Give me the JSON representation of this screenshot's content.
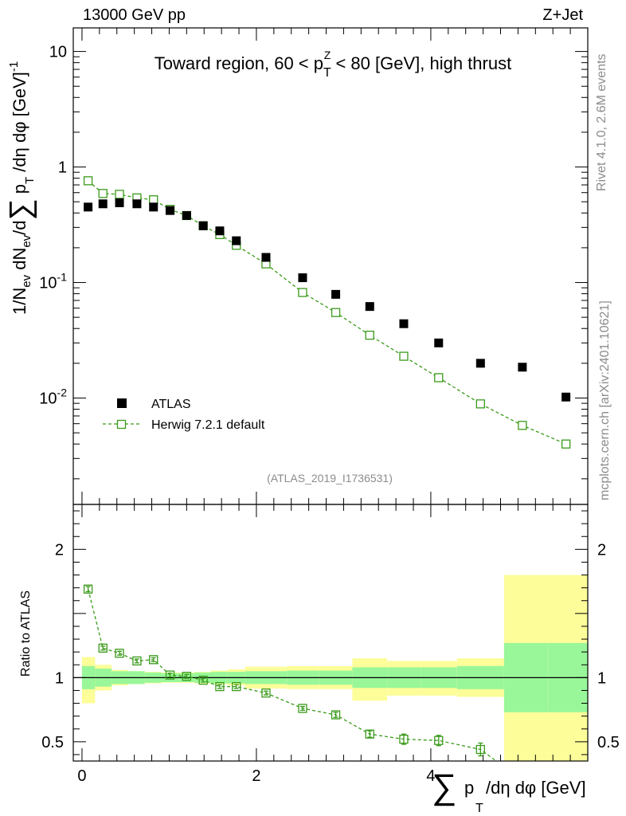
{
  "header": {
    "left": "13000 GeV pp",
    "right": "Z+Jet"
  },
  "side": {
    "rivet": "Rivet 4.1.0,  2.6M events",
    "mcplots": "mcplots.cern.ch [arXiv:2401.10621]"
  },
  "watermark": "(ATLAS_2019_I1736531)",
  "colors": {
    "mc": "#3a9a1a",
    "band_inner": "#99f799",
    "band_outer": "#fdfd99",
    "data": "#000000"
  },
  "chart_data": [
    {
      "type": "scatter",
      "title": "Toward region, 60 < p_T^Z < 80 [GeV], high thrust",
      "ylabel": "1/N_ev dN_ev/d∑p_T/dη dφ [GeV]^-1",
      "yscale": "log",
      "xlim": [
        -0.1,
        5.8
      ],
      "ylim": [
        0.0012,
        16
      ],
      "yticks": [
        {
          "value": 10,
          "label": "10"
        },
        {
          "value": 1,
          "label": "1"
        },
        {
          "value": 0.1,
          "label": "10^-1"
        },
        {
          "value": 0.01,
          "label": "10^-2"
        }
      ],
      "legend": {
        "position": "bottom-left",
        "entries": [
          "ATLAS",
          "Herwig 7.2.1 default"
        ]
      },
      "series": [
        {
          "name": "ATLAS",
          "marker": "filled-square",
          "x": [
            0.07,
            0.24,
            0.43,
            0.63,
            0.82,
            1.01,
            1.2,
            1.39,
            1.58,
            1.77,
            2.11,
            2.53,
            2.91,
            3.3,
            3.69,
            4.09,
            4.57,
            5.05,
            5.55
          ],
          "y": [
            0.45,
            0.48,
            0.49,
            0.48,
            0.45,
            0.42,
            0.38,
            0.31,
            0.28,
            0.23,
            0.165,
            0.11,
            0.079,
            0.062,
            0.044,
            0.03,
            0.02,
            0.0185,
            0.0102
          ]
        },
        {
          "name": "Herwig 7.2.1 default",
          "marker": "open-square",
          "line": "dashed",
          "x": [
            0.07,
            0.24,
            0.43,
            0.63,
            0.82,
            1.01,
            1.2,
            1.39,
            1.58,
            1.77,
            2.11,
            2.53,
            2.91,
            3.3,
            3.69,
            4.09,
            4.57,
            5.05,
            5.55
          ],
          "y": [
            0.76,
            0.59,
            0.58,
            0.54,
            0.52,
            0.43,
            0.38,
            0.31,
            0.26,
            0.21,
            0.145,
            0.082,
            0.055,
            0.035,
            0.023,
            0.015,
            0.0089,
            0.0058,
            0.004
          ]
        }
      ]
    },
    {
      "type": "scatter",
      "ylabel": "Ratio to ATLAS",
      "xlabel": "∑ p_T/dη dφ [GeV]",
      "xlim": [
        -0.1,
        5.8
      ],
      "ylim": [
        0.35,
        2.35
      ],
      "xticks": [
        0,
        2,
        4
      ],
      "yticks": [
        0.5,
        1,
        2
      ],
      "bins": [
        0,
        0.15,
        0.34,
        0.53,
        0.72,
        0.91,
        1.1,
        1.29,
        1.48,
        1.67,
        1.87,
        2.35,
        2.72,
        3.1,
        3.5,
        3.89,
        4.3,
        4.84,
        5.35,
        5.85
      ],
      "band_inner": {
        "low": [
          0.91,
          0.93,
          0.95,
          0.95,
          0.96,
          0.965,
          0.965,
          0.96,
          0.955,
          0.955,
          0.95,
          0.945,
          0.945,
          0.92,
          0.92,
          0.92,
          0.91,
          0.73,
          0.73
        ],
        "high": [
          1.09,
          1.07,
          1.05,
          1.05,
          1.04,
          1.035,
          1.035,
          1.04,
          1.045,
          1.045,
          1.05,
          1.055,
          1.055,
          1.08,
          1.08,
          1.08,
          1.09,
          1.27,
          1.27
        ]
      },
      "band_outer": {
        "low": [
          0.8,
          0.9,
          0.94,
          0.95,
          0.955,
          0.96,
          0.96,
          0.955,
          0.95,
          0.94,
          0.915,
          0.91,
          0.91,
          0.82,
          0.86,
          0.86,
          0.85,
          0.2,
          0.2
        ],
        "high": [
          1.16,
          1.1,
          1.06,
          1.05,
          1.045,
          1.04,
          1.04,
          1.045,
          1.055,
          1.065,
          1.085,
          1.09,
          1.09,
          1.15,
          1.13,
          1.13,
          1.15,
          1.8,
          1.8
        ]
      },
      "series": [
        {
          "name": "Herwig 7.2.1 default",
          "x": [
            0.07,
            0.24,
            0.43,
            0.63,
            0.82,
            1.01,
            1.2,
            1.39,
            1.58,
            1.77,
            2.11,
            2.53,
            2.91,
            3.3,
            3.69,
            4.09,
            4.57
          ],
          "y": [
            1.69,
            1.23,
            1.19,
            1.13,
            1.14,
            1.02,
            1.01,
            0.98,
            0.93,
            0.93,
            0.88,
            0.76,
            0.71,
            0.56,
            0.52,
            0.51,
            0.44
          ],
          "yerr": [
            0.02,
            0.015,
            0.015,
            0.015,
            0.015,
            0.015,
            0.015,
            0.015,
            0.015,
            0.015,
            0.015,
            0.015,
            0.02,
            0.025,
            0.04,
            0.04,
            0.05
          ]
        }
      ]
    }
  ]
}
